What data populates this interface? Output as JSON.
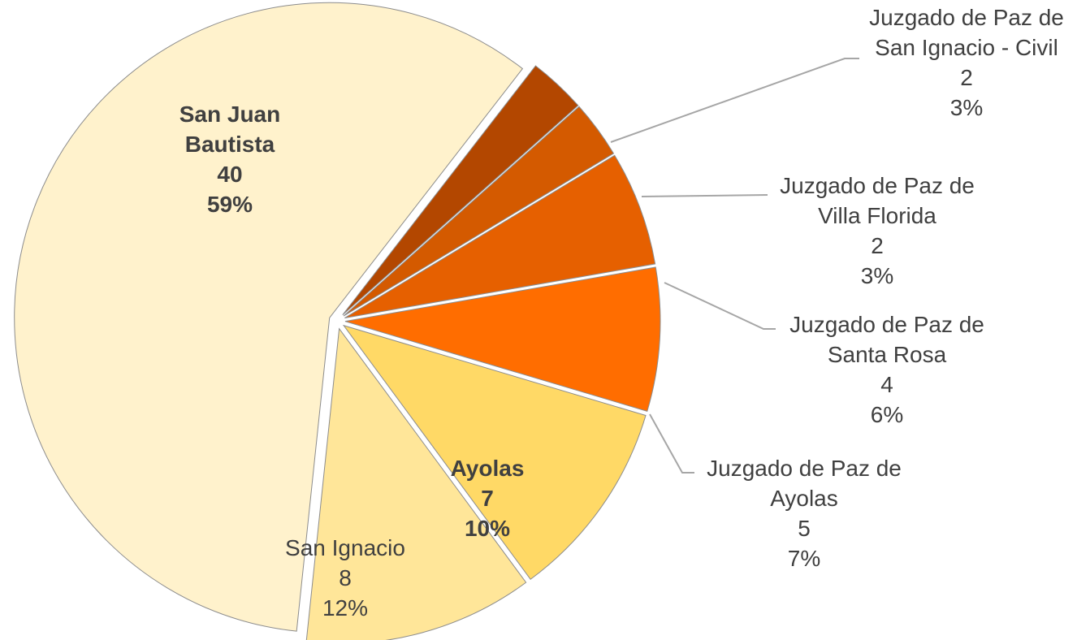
{
  "chart_data": {
    "type": "pie",
    "categories": [
      "San Juan Bautista",
      "Juzgado de Paz de San Ignacio - Civil",
      "Juzgado de Paz de Villa Florida",
      "Juzgado de Paz de Santa Rosa",
      "Juzgado de Paz de Ayolas",
      "Ayolas",
      "San Ignacio"
    ],
    "values": [
      40,
      2,
      2,
      4,
      5,
      7,
      8
    ],
    "value_labels": [
      "59%",
      "3%",
      "3%",
      "6%",
      "7%",
      "10%",
      "12%"
    ],
    "colors": [
      "#fff2cc",
      "#b34700",
      "#d45a00",
      "#e66000",
      "#ff6d00",
      "#ffd966",
      "#ffe699"
    ]
  }
}
